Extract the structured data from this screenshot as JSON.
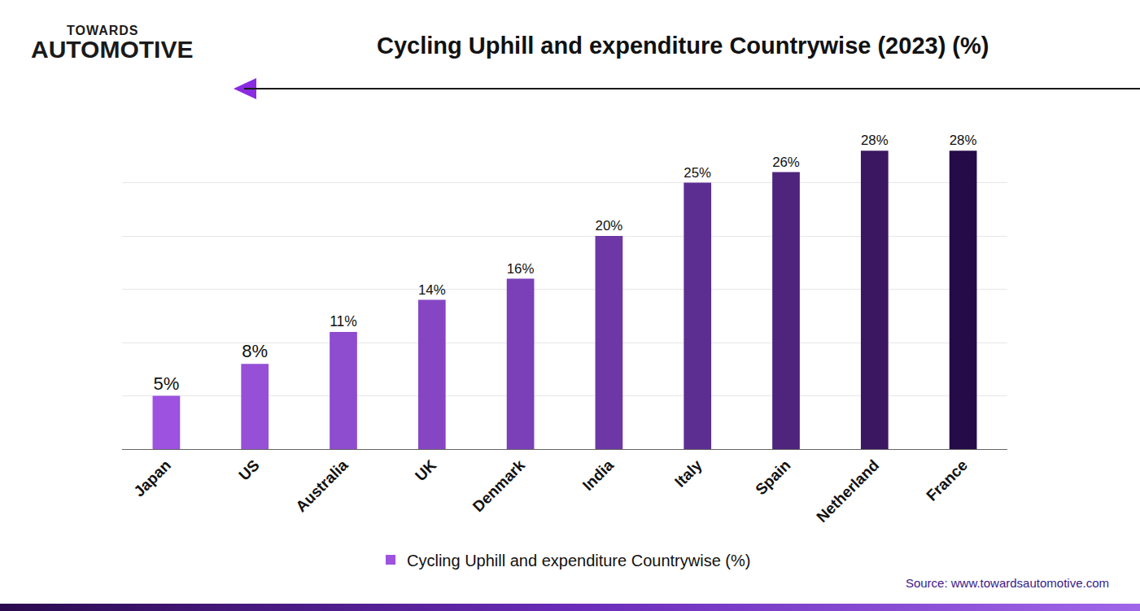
{
  "chart_data": {
    "type": "bar",
    "title": "Cycling Uphill and expenditure Countrywise (2023) (%)",
    "logo": [
      "TOWARDS",
      "AUTOMOTIVE"
    ],
    "source": "Source: www.towardsautomotive.com",
    "categories": [
      "Japan",
      "US",
      "Australia",
      "UK",
      "Denmark",
      "India",
      "Italy",
      "Spain",
      "Netherland",
      "France"
    ],
    "series": [
      {
        "name": "Cycling Uphill and expenditure Countrywise (%)",
        "values": [
          5,
          8,
          11,
          14,
          16,
          20,
          25,
          26,
          28,
          28
        ],
        "value_labels": [
          "5%",
          "8%",
          "11%",
          "14%",
          "16%",
          "20%",
          "25%",
          "26%",
          "28%",
          "28%"
        ],
        "colors": [
          "#9d52e0",
          "#9650d8",
          "#8e4ccf",
          "#8646c4",
          "#7b40b8",
          "#6d37a6",
          "#5d2e92",
          "#4e247c",
          "#3b1762",
          "#250b47"
        ]
      }
    ],
    "ylim": [
      0,
      30
    ],
    "yticks": [
      0,
      5,
      10,
      15,
      20,
      25,
      30
    ],
    "grid": true,
    "data_labels": true,
    "tick_labels": "x",
    "legend": "bottom"
  }
}
